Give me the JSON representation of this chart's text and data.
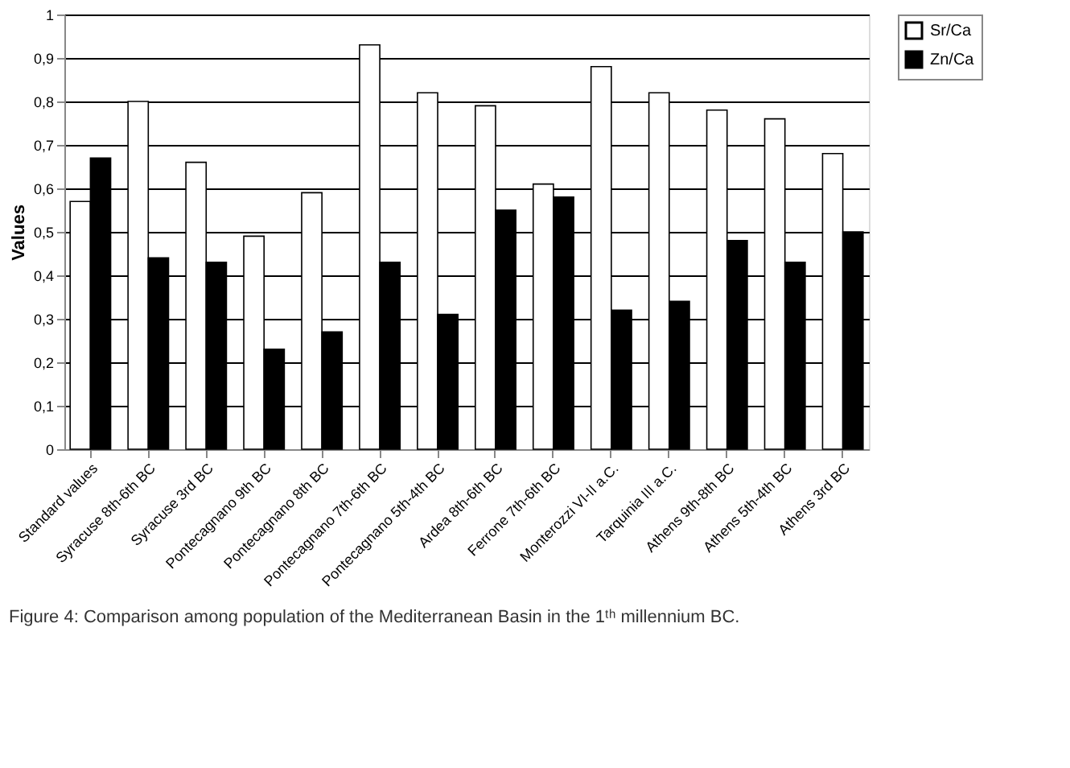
{
  "chart_data": {
    "type": "bar",
    "ylabel": "Values",
    "categories": [
      "Standard values",
      "Syracuse 8th-6th BC",
      "Syracuse 3rd BC",
      "Pontecagnano 9th BC",
      "Pontecagnano 8th BC",
      "Pontecagnano 7th-6th BC",
      "Pontecagnano 5th-4th BC",
      "Ardea 8th-6th BC",
      "Ferrone 7th-6th BC",
      "Monterozzi VI-II a.C.",
      "Tarquinia III a.C.",
      "Athens 9th-8th BC",
      "Athens 5th-4th BC",
      "Athens 3rd BC"
    ],
    "series": [
      {
        "name": "Sr/Ca",
        "color": "#ffffff",
        "values": [
          0.57,
          0.8,
          0.66,
          0.49,
          0.59,
          0.93,
          0.82,
          0.79,
          0.61,
          0.88,
          0.82,
          0.78,
          0.76,
          0.68
        ]
      },
      {
        "name": "Zn/Ca",
        "color": "#000000",
        "values": [
          0.67,
          0.44,
          0.43,
          0.23,
          0.27,
          0.43,
          0.31,
          0.55,
          0.58,
          0.32,
          0.34,
          0.48,
          0.43,
          0.5
        ]
      }
    ],
    "ylim": [
      0,
      1
    ],
    "yticks": [
      0,
      {
        "value": 0.1,
        "label": "0,1"
      },
      {
        "value": 0.2,
        "label": "0,2"
      },
      {
        "value": 0.3,
        "label": "0,3"
      },
      {
        "value": 0.4,
        "label": "0,4"
      },
      {
        "value": 0.5,
        "label": "0,5"
      },
      {
        "value": 0.6,
        "label": "0,6"
      },
      {
        "value": 0.7,
        "label": "0,7"
      },
      {
        "value": 0.8,
        "label": "0,8"
      },
      {
        "value": 0.9,
        "label": "0,9"
      },
      1
    ],
    "grid": "y",
    "legend": "right",
    "annotations": [
      "Figure 4: Comparison among population of the Mediterranean Basin in the 1ᵗʰ millennium BC."
    ]
  }
}
